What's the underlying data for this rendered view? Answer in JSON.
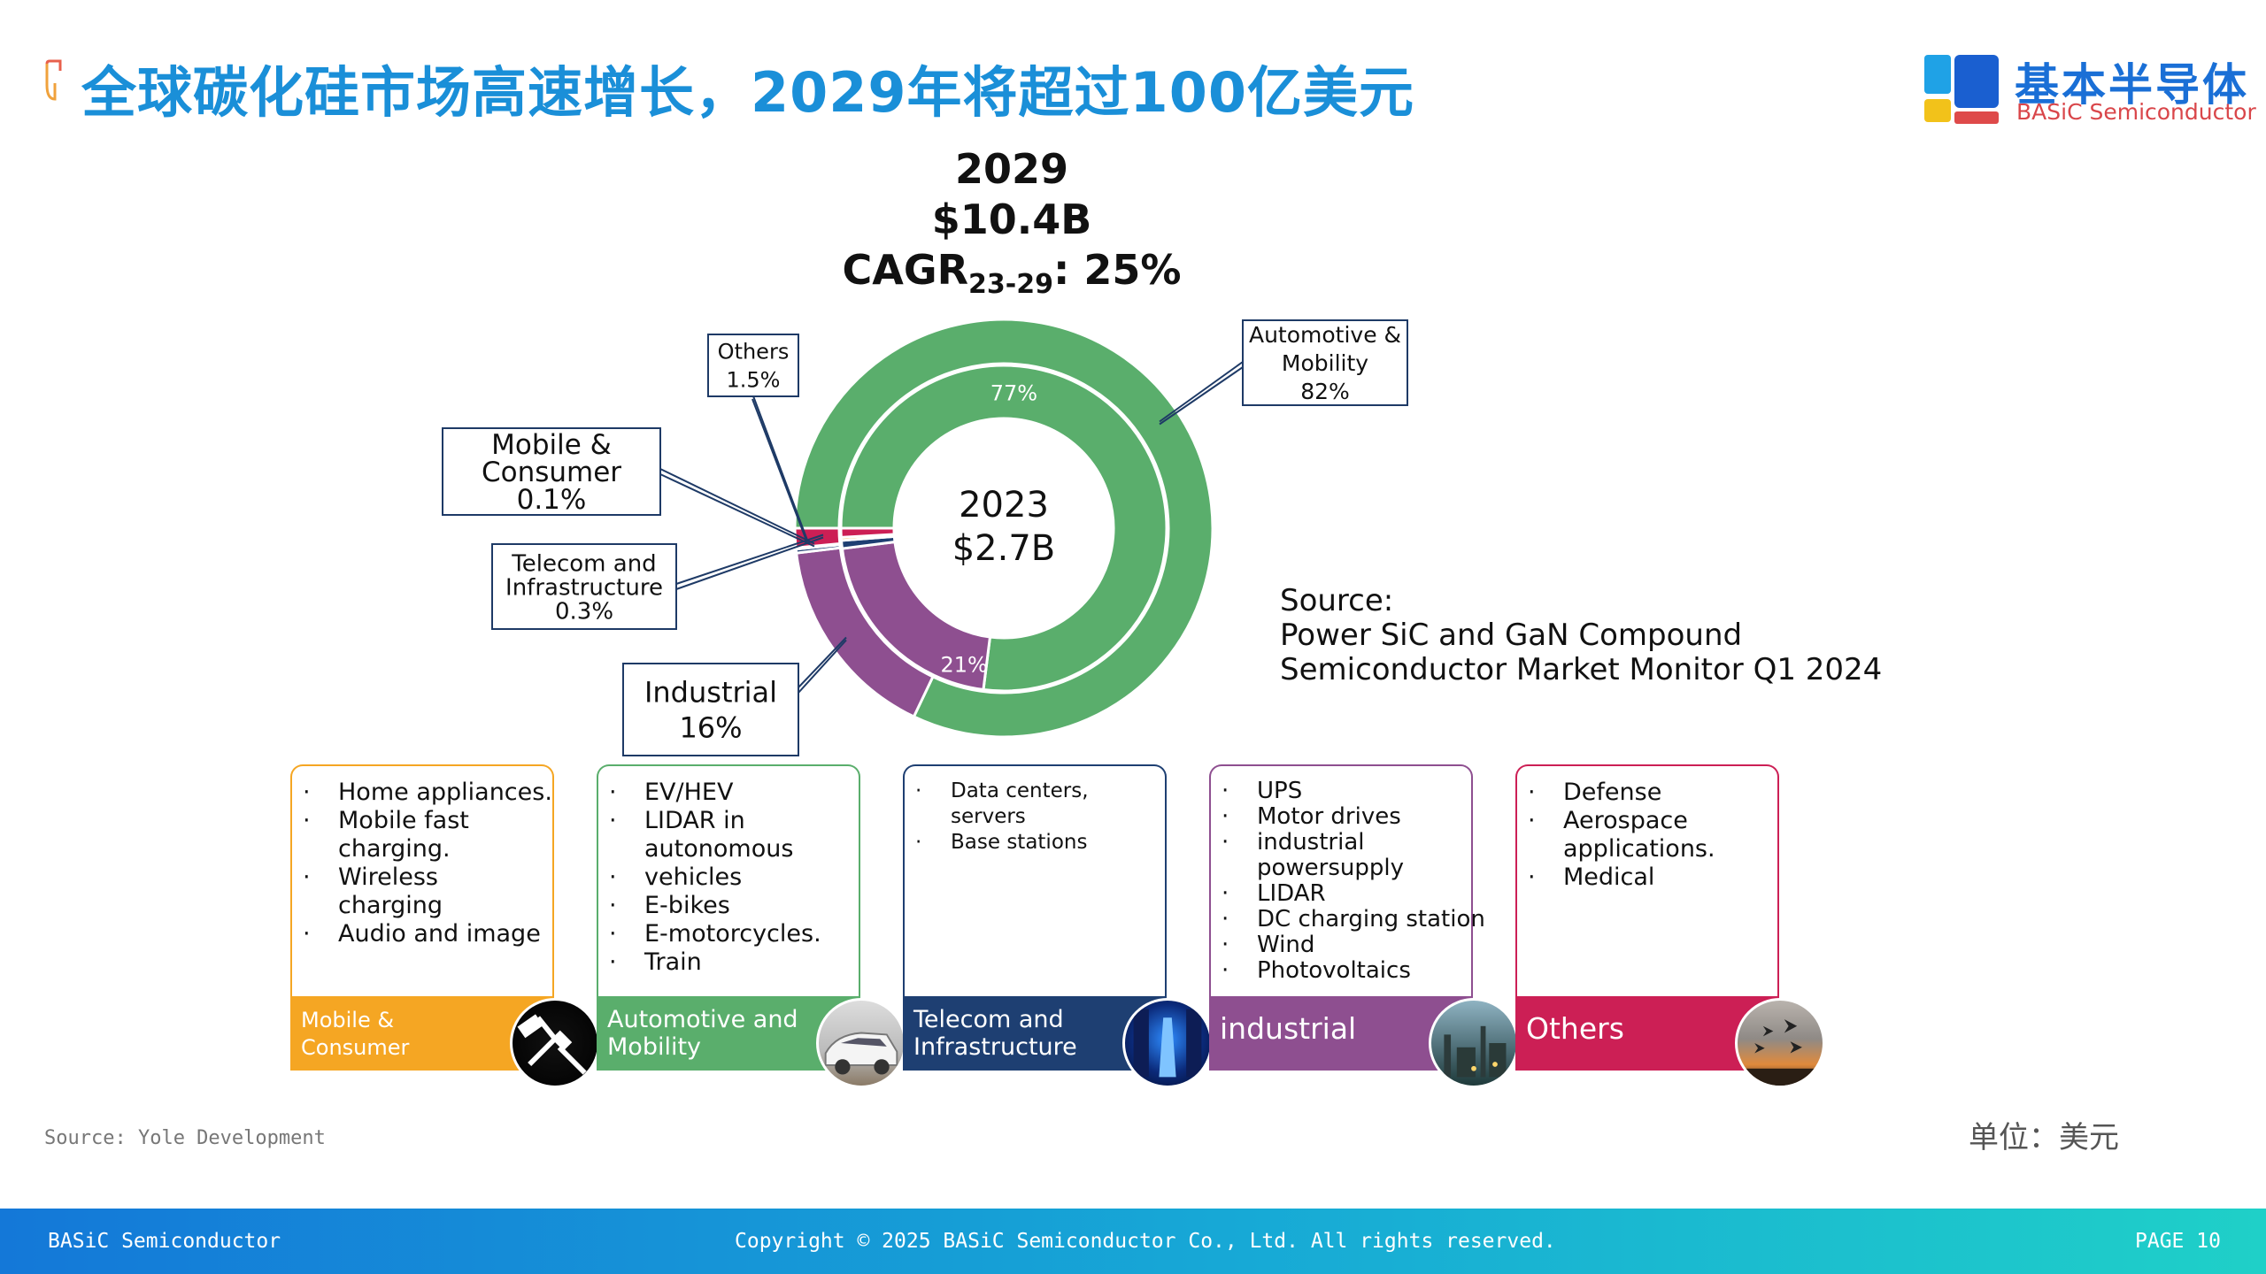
{
  "header": {
    "title": "全球碳化硅市场高速增长，2029年将超过100亿美元",
    "logo_cn": "基本半导体",
    "logo_en": "BASiC Semiconductor"
  },
  "chart_data": {
    "type": "donut",
    "headline": {
      "year": "2029",
      "value": "$10.4B",
      "cagr_label": "CAGR",
      "cagr_sub": "23-29",
      "cagr_value": ": 25%"
    },
    "center": {
      "year": "2023",
      "value": "$2.7B"
    },
    "inner_ring": {
      "year": "2023",
      "segments": [
        {
          "name": "Automotive & Mobility",
          "value": 77,
          "label": "77%"
        },
        {
          "name": "Industrial",
          "value": 21,
          "label": "21%"
        },
        {
          "name": "Telecom and Infrastructure",
          "value": 0.8,
          "label": ""
        },
        {
          "name": "Mobile & Consumer",
          "value": 0.3,
          "label": ""
        },
        {
          "name": "Others",
          "value": 0.9,
          "label": ""
        }
      ]
    },
    "outer_ring": {
      "year": "2029",
      "segments": [
        {
          "name": "Automotive & Mobility",
          "value": 82,
          "callout": [
            "Automotive &",
            "Mobility",
            "82%"
          ]
        },
        {
          "name": "Industrial",
          "value": 16,
          "callout": [
            "Industrial",
            "16%"
          ]
        },
        {
          "name": "Telecom and Infrastructure",
          "value": 0.3,
          "callout": [
            "Telecom and",
            "Infrastructure",
            "0.3%"
          ]
        },
        {
          "name": "Mobile & Consumer",
          "value": 0.1,
          "callout": [
            "Mobile &",
            "Consumer",
            "0.1%"
          ]
        },
        {
          "name": "Others",
          "value": 1.5,
          "callout": [
            "Others",
            "1.5%"
          ]
        }
      ]
    },
    "colors": {
      "automotive": "#5aae6c",
      "industrial": "#8e4f90",
      "telecom": "#1e3f72",
      "mobile": "#f5a623",
      "others": "#cc1f55"
    }
  },
  "source": {
    "line1": "Source:",
    "line2": "Power SiC and GaN Compound",
    "line3": "Semiconductor Market Monitor Q1 2024"
  },
  "cards": [
    {
      "id": "mobile",
      "color": "#f5a623",
      "items": [
        "Home appliances.",
        "Mobile fast",
        "charging.",
        "Wireless",
        "charging",
        "Audio and image"
      ],
      "bullets": [
        true,
        true,
        false,
        true,
        false,
        true
      ],
      "band": [
        "Mobile &",
        "Consumer"
      ],
      "photo": "charger-cable-icon"
    },
    {
      "id": "automotive",
      "color": "#5aae6c",
      "items": [
        "EV/HEV",
        "LIDAR in",
        "autonomous",
        "vehicles",
        "E-bikes",
        "E-motorcycles.",
        "Train"
      ],
      "bullets": [
        true,
        true,
        false,
        true,
        true,
        true,
        true
      ],
      "band": [
        "Automotive and",
        "Mobility"
      ],
      "photo": "car-icon"
    },
    {
      "id": "telecom",
      "color": "#1e3f72",
      "items": [
        "Data centers,",
        "servers",
        "Base stations"
      ],
      "bullets": [
        true,
        false,
        true
      ],
      "band": [
        "Telecom and",
        "Infrastructure"
      ],
      "photo": "server-room-icon"
    },
    {
      "id": "industrial",
      "color": "#8e4f90",
      "items": [
        "UPS",
        "Motor drives",
        "industrial",
        "powersupply",
        "LIDAR",
        "DC charging station",
        "Wind",
        "Photovoltaics"
      ],
      "bullets": [
        true,
        true,
        true,
        false,
        true,
        true,
        true,
        true
      ],
      "band": [
        "industrial"
      ],
      "photo": "factory-icon"
    },
    {
      "id": "others",
      "color": "#cc1f55",
      "items": [
        "Defense",
        "Aerospace",
        "applications.",
        "Medical"
      ],
      "bullets": [
        true,
        true,
        false,
        true
      ],
      "band": [
        "Others"
      ],
      "photo": "jets-icon"
    }
  ],
  "unit_label": "单位：美元",
  "footnote": "Source: Yole Development",
  "footer": {
    "left": "BASiC Semiconductor",
    "center": "Copyright © 2025 BASiC Semiconductor Co., Ltd. All rights reserved.",
    "right": "PAGE 10"
  }
}
